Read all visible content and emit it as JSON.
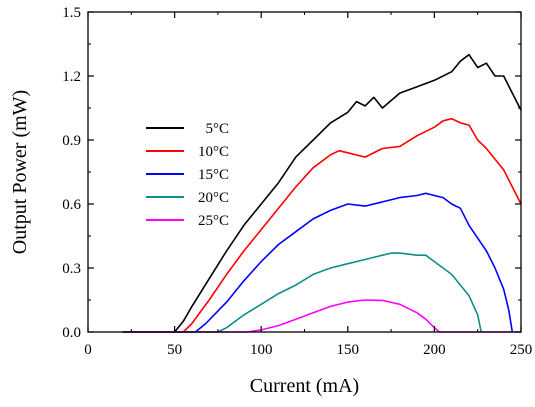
{
  "chart_data": {
    "type": "line",
    "xlabel": "Current (mA)",
    "ylabel": "Output Power (mW)",
    "xlim": [
      0,
      250
    ],
    "ylim": [
      0,
      1.5
    ],
    "xticks": [
      0,
      50,
      100,
      150,
      200,
      250
    ],
    "yticks": [
      0.0,
      0.3,
      0.6,
      0.9,
      1.2,
      1.5
    ],
    "xtick_labels": [
      "0",
      "50",
      "100",
      "150",
      "200",
      "250"
    ],
    "ytick_labels": [
      "0.0",
      "0.3",
      "0.6",
      "0.9",
      "1.2",
      "1.5"
    ],
    "grid": false,
    "legend_position": "center-left",
    "series": [
      {
        "name": "5°C",
        "color": "#000000",
        "points": [
          [
            20,
            0
          ],
          [
            50,
            0
          ],
          [
            55,
            0.05
          ],
          [
            60,
            0.12
          ],
          [
            70,
            0.25
          ],
          [
            80,
            0.38
          ],
          [
            90,
            0.5
          ],
          [
            100,
            0.6
          ],
          [
            110,
            0.7
          ],
          [
            120,
            0.82
          ],
          [
            130,
            0.9
          ],
          [
            140,
            0.98
          ],
          [
            150,
            1.03
          ],
          [
            155,
            1.08
          ],
          [
            160,
            1.06
          ],
          [
            165,
            1.1
          ],
          [
            170,
            1.05
          ],
          [
            180,
            1.12
          ],
          [
            190,
            1.15
          ],
          [
            200,
            1.18
          ],
          [
            210,
            1.22
          ],
          [
            215,
            1.27
          ],
          [
            220,
            1.3
          ],
          [
            225,
            1.24
          ],
          [
            230,
            1.26
          ],
          [
            235,
            1.2
          ],
          [
            240,
            1.2
          ],
          [
            245,
            1.12
          ],
          [
            250,
            1.04
          ]
        ]
      },
      {
        "name": "10°C",
        "color": "#ff0000",
        "points": [
          [
            20,
            0
          ],
          [
            55,
            0
          ],
          [
            60,
            0.04
          ],
          [
            70,
            0.15
          ],
          [
            80,
            0.27
          ],
          [
            90,
            0.38
          ],
          [
            100,
            0.48
          ],
          [
            110,
            0.58
          ],
          [
            120,
            0.68
          ],
          [
            130,
            0.77
          ],
          [
            140,
            0.83
          ],
          [
            145,
            0.85
          ],
          [
            150,
            0.84
          ],
          [
            160,
            0.82
          ],
          [
            170,
            0.86
          ],
          [
            180,
            0.87
          ],
          [
            190,
            0.92
          ],
          [
            200,
            0.96
          ],
          [
            205,
            0.99
          ],
          [
            210,
            1.0
          ],
          [
            215,
            0.98
          ],
          [
            220,
            0.97
          ],
          [
            225,
            0.9
          ],
          [
            230,
            0.86
          ],
          [
            240,
            0.76
          ],
          [
            245,
            0.68
          ],
          [
            250,
            0.6
          ]
        ]
      },
      {
        "name": "15°C",
        "color": "#0000ff",
        "points": [
          [
            20,
            0
          ],
          [
            62,
            0
          ],
          [
            68,
            0.04
          ],
          [
            80,
            0.14
          ],
          [
            90,
            0.24
          ],
          [
            100,
            0.33
          ],
          [
            110,
            0.41
          ],
          [
            120,
            0.47
          ],
          [
            130,
            0.53
          ],
          [
            140,
            0.57
          ],
          [
            150,
            0.6
          ],
          [
            160,
            0.59
          ],
          [
            170,
            0.61
          ],
          [
            180,
            0.63
          ],
          [
            190,
            0.64
          ],
          [
            195,
            0.65
          ],
          [
            200,
            0.64
          ],
          [
            205,
            0.63
          ],
          [
            210,
            0.6
          ],
          [
            215,
            0.58
          ],
          [
            220,
            0.5
          ],
          [
            230,
            0.38
          ],
          [
            235,
            0.3
          ],
          [
            240,
            0.2
          ],
          [
            243,
            0.1
          ],
          [
            245,
            0
          ]
        ]
      },
      {
        "name": "20°C",
        "color": "#0e8f87",
        "points": [
          [
            20,
            0
          ],
          [
            75,
            0
          ],
          [
            80,
            0.02
          ],
          [
            90,
            0.08
          ],
          [
            100,
            0.13
          ],
          [
            110,
            0.18
          ],
          [
            120,
            0.22
          ],
          [
            130,
            0.27
          ],
          [
            140,
            0.3
          ],
          [
            150,
            0.32
          ],
          [
            160,
            0.34
          ],
          [
            170,
            0.36
          ],
          [
            175,
            0.37
          ],
          [
            180,
            0.37
          ],
          [
            190,
            0.36
          ],
          [
            195,
            0.36
          ],
          [
            200,
            0.33
          ],
          [
            210,
            0.27
          ],
          [
            220,
            0.17
          ],
          [
            225,
            0.08
          ],
          [
            227,
            0
          ]
        ]
      },
      {
        "name": "25°C",
        "color": "#ff00ff",
        "points": [
          [
            20,
            0
          ],
          [
            92,
            0
          ],
          [
            100,
            0.01
          ],
          [
            110,
            0.03
          ],
          [
            120,
            0.06
          ],
          [
            130,
            0.09
          ],
          [
            140,
            0.12
          ],
          [
            150,
            0.14
          ],
          [
            160,
            0.15
          ],
          [
            170,
            0.148
          ],
          [
            180,
            0.13
          ],
          [
            190,
            0.09
          ],
          [
            195,
            0.06
          ],
          [
            200,
            0.02
          ],
          [
            203,
            0
          ],
          [
            250,
            0
          ]
        ]
      }
    ]
  }
}
